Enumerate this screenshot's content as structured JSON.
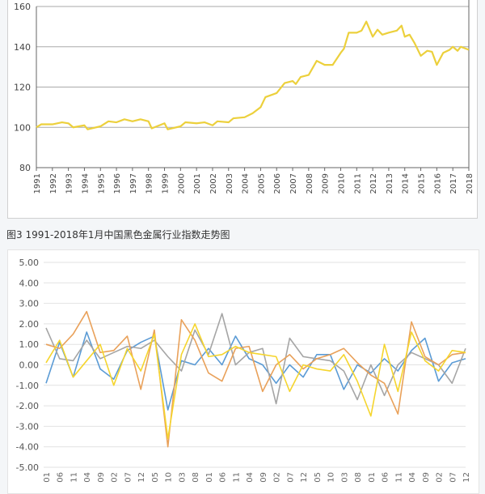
{
  "caption": "图3 1991-2018年1月中国黑色金属行业指数走势图",
  "chart_data": [
    {
      "type": "line",
      "title": "",
      "xlabel": "",
      "ylabel": "",
      "ylim": [
        80,
        160
      ],
      "yticks": [
        "80",
        "100",
        "120",
        "140",
        "160"
      ],
      "xticks": [
        "1991",
        "1992",
        "1993",
        "1994",
        "1995",
        "1996",
        "1997",
        "1998",
        "1999",
        "2000",
        "2001",
        "2002",
        "2003",
        "2004",
        "2005",
        "2006",
        "2007",
        "2008",
        "2009",
        "2010",
        "2011",
        "2012",
        "2013",
        "2014",
        "2015",
        "2016",
        "2017",
        "2018"
      ],
      "xlim": [
        1991,
        2018
      ],
      "grid": true,
      "color": "#ecd03c",
      "series": [
        {
          "x": [
            1991,
            1991.3,
            1992,
            1992.6,
            1993,
            1993.3,
            1994,
            1994.2,
            1995,
            1995.5,
            1996,
            1996.5,
            1997,
            1997.5,
            1998,
            1998.2,
            1999,
            1999.2,
            2000,
            2000.3,
            2001,
            2001.5,
            2002,
            2002.3,
            2003,
            2003.3,
            2004,
            2004.5,
            2005,
            2005.3,
            2006,
            2006.5,
            2007,
            2007.2,
            2007.5,
            2008,
            2008.5,
            2009,
            2009.5,
            2010,
            2010.2,
            2010.5,
            2011,
            2011.3,
            2011.6,
            2012,
            2012.3,
            2012.6,
            2013,
            2013.5,
            2013.8,
            2014,
            2014.3,
            2014.6,
            2015,
            2015.4,
            2015.7,
            2016,
            2016.4,
            2016.8,
            2017,
            2017.3,
            2017.5,
            2018
          ],
          "values": [
            100,
            101.5,
            101.5,
            102.5,
            102,
            100,
            101,
            99,
            100.5,
            103,
            102.5,
            104,
            103,
            104,
            103,
            99.5,
            102,
            99,
            100.5,
            102.5,
            102,
            102.5,
            101,
            103,
            102.5,
            104.5,
            105,
            107,
            110,
            115,
            117,
            122,
            123,
            121.5,
            125,
            126,
            133,
            131,
            131,
            137,
            139,
            147,
            147,
            148,
            152.5,
            145,
            148.5,
            146,
            147,
            148,
            150.5,
            145,
            146,
            142,
            135.5,
            138,
            137.5,
            131,
            137,
            138.5,
            140,
            138,
            140,
            138.5
          ]
        }
      ]
    },
    {
      "type": "line",
      "title": "",
      "xlabel": "",
      "ylabel": "",
      "ylim": [
        -5,
        5
      ],
      "yticks": [
        "5.00",
        "4.00",
        "3.00",
        "2.00",
        "1.00",
        "0.00",
        "-1.00",
        "-2.00",
        "-3.00",
        "-4.00",
        "-5.00"
      ],
      "categories": [
        "01",
        "06",
        "11",
        "04",
        "09",
        "02",
        "07",
        "12",
        "05",
        "10",
        "03",
        "08",
        "01",
        "06",
        "11",
        "04",
        "09",
        "02",
        "07",
        "12",
        "05",
        "10",
        "03",
        "08",
        "01",
        "06",
        "11",
        "04",
        "09",
        "02",
        "07",
        "12"
      ],
      "grid": true,
      "series": [
        {
          "color": "#5b9bd5",
          "values": [
            -0.9,
            1.1,
            -0.6,
            1.6,
            -0.2,
            -0.7,
            0.7,
            1.1,
            1.4,
            -2.2,
            0.2,
            0.0,
            0.8,
            0.0,
            1.4,
            0.3,
            0.0,
            -0.9,
            0.0,
            -0.6,
            0.5,
            0.5,
            -1.2,
            0.0,
            -0.4,
            0.3,
            -0.3,
            0.7,
            1.3,
            -0.8,
            0.1,
            0.3
          ]
        },
        {
          "color": "#a5a5a5",
          "values": [
            1.8,
            0.3,
            0.2,
            1.2,
            0.3,
            0.6,
            0.9,
            0.8,
            1.2,
            0.4,
            -0.3,
            1.7,
            0.5,
            2.5,
            0.0,
            0.6,
            0.8,
            -1.9,
            1.3,
            0.4,
            0.3,
            0.2,
            -0.3,
            -1.7,
            0.0,
            -1.5,
            0.0,
            0.6,
            0.3,
            0.0,
            -0.9,
            0.8
          ]
        },
        {
          "color": "#e9a15a",
          "values": [
            1.0,
            0.8,
            1.5,
            2.6,
            0.6,
            0.7,
            1.4,
            -1.2,
            1.7,
            -4.0,
            2.2,
            1.2,
            -0.4,
            -0.8,
            0.8,
            0.9,
            -1.3,
            0.0,
            0.5,
            -0.2,
            0.3,
            0.5,
            0.8,
            0.1,
            -0.5,
            -0.9,
            -2.4,
            2.1,
            0.4,
            0.0,
            0.5,
            0.6
          ]
        },
        {
          "color": "#f5d52e",
          "values": [
            0.1,
            1.2,
            -0.6,
            0.2,
            1.0,
            -1.0,
            0.8,
            -0.3,
            1.5,
            -3.6,
            0.5,
            2.0,
            0.4,
            0.5,
            0.9,
            0.6,
            0.5,
            0.4,
            -1.3,
            0.0,
            -0.2,
            -0.3,
            0.5,
            -0.8,
            -2.5,
            1.0,
            -1.3,
            1.6,
            0.2,
            -0.3,
            0.7,
            0.6
          ]
        }
      ]
    }
  ]
}
